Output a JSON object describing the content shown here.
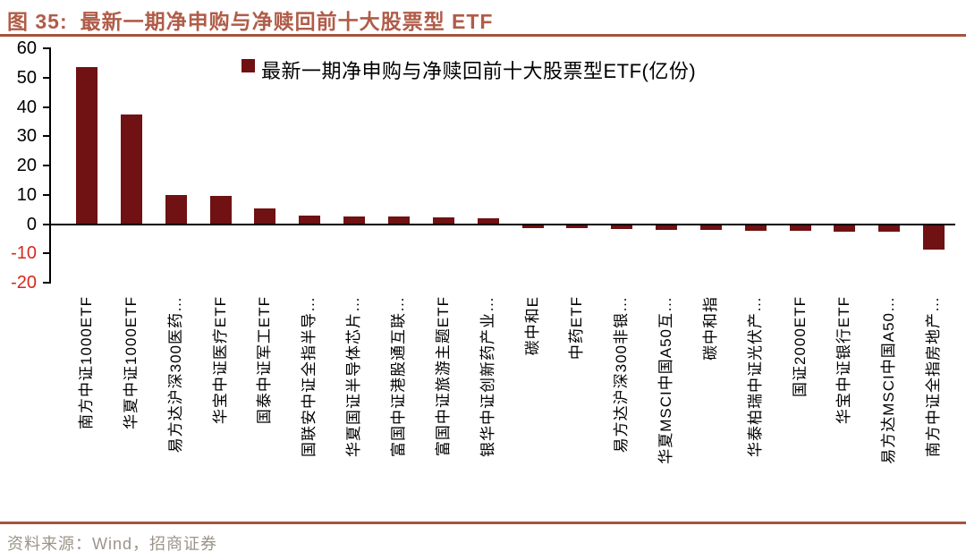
{
  "header": {
    "figure_label": "图 35:",
    "title": "最新一期净申购与净赎回前十大股票型 ETF"
  },
  "chart_data": {
    "type": "bar",
    "title": "最新一期净申购与净赎回前十大股票型ETF(亿份)",
    "legend_position": "top-center",
    "categories": [
      "南方中证1000ETF",
      "华夏中证1000ETF",
      "易方达沪深300医药…",
      "华宝中证医疗ETF",
      "国泰中证军工ETF",
      "国联安中证全指半导…",
      "华夏国证半导体芯片…",
      "富国中证港股通互联…",
      "富国中证旅游主题ETF",
      "银华中证创新药产业…",
      "碳中和E",
      "中药ETF",
      "易方达沪深300非银…",
      "华夏MSCI中国A50互…",
      "碳中和指",
      "华泰柏瑞中证光伏产…",
      "国证2000ETF",
      "华宝中证银行ETF",
      "易方达MSCI中国A50…",
      "南方中证全指房地产…"
    ],
    "series": [
      {
        "name": "最新一期净申购与净赎回前十大股票型ETF(亿份)",
        "values": [
          53.5,
          37.5,
          10.0,
          9.6,
          5.4,
          2.8,
          2.5,
          2.5,
          2.3,
          1.9,
          -1.3,
          -1.5,
          -1.8,
          -1.9,
          -2.1,
          -2.3,
          -2.3,
          -2.5,
          -2.6,
          -8.8
        ]
      }
    ],
    "ylim": [
      -20,
      60
    ],
    "yticks": [
      60,
      50,
      40,
      30,
      20,
      10,
      0,
      -10,
      -20
    ],
    "xlabel": "",
    "ylabel": "",
    "grid": false
  },
  "footer": {
    "source": "资料来源：Wind，招商证券"
  },
  "colors": {
    "bar": "#701113",
    "title_text": "#B05C48",
    "accent_line": "#A4543F",
    "negative_label": "#D7281E",
    "axis": "#000000",
    "source_text": "#9C948A"
  }
}
